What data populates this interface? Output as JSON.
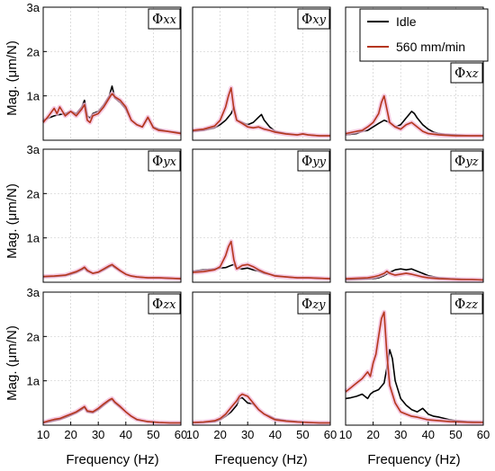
{
  "figure": {
    "xlabel": "Frequency (Hz)",
    "ylabel": "Mag. (μm/N)",
    "legend": {
      "placement": "top-right panel xy",
      "entries": [
        "Idle",
        "560 mm/min"
      ]
    },
    "colors": {
      "idle": "#000000",
      "feed": "#b5361d",
      "band": "#f2b8d8",
      "grid": "#cfcfcf"
    }
  },
  "chart_data": [
    {
      "type": "line",
      "panel": "xx",
      "label_main": "Φ",
      "label_sub": "xx",
      "xlim": [
        10,
        60
      ],
      "ylim": [
        0,
        3
      ],
      "xticks": [
        "10",
        "20",
        "30",
        "40",
        "50",
        "60"
      ],
      "yticks": [
        "1a",
        "2a",
        "3a"
      ],
      "series": [
        {
          "name": "Idle",
          "x": [
            10,
            12,
            14,
            16,
            18,
            20,
            22,
            24,
            25,
            26,
            27,
            28,
            30,
            32,
            34,
            35,
            36,
            38,
            40,
            42,
            44,
            46,
            48,
            50,
            52,
            55,
            58,
            60
          ],
          "y": [
            0.45,
            0.5,
            0.55,
            0.58,
            0.6,
            0.65,
            0.6,
            0.75,
            0.9,
            0.55,
            0.5,
            0.6,
            0.65,
            0.8,
            1.0,
            1.22,
            0.95,
            0.85,
            0.7,
            0.45,
            0.35,
            0.3,
            0.5,
            0.3,
            0.25,
            0.2,
            0.18,
            0.16
          ]
        },
        {
          "name": "560 mm/min",
          "x": [
            10,
            12,
            14,
            15,
            16,
            18,
            20,
            22,
            24,
            25,
            26,
            27,
            28,
            30,
            32,
            34,
            35,
            36,
            38,
            40,
            42,
            44,
            46,
            48,
            50,
            52,
            55,
            58,
            60
          ],
          "y": [
            0.4,
            0.55,
            0.72,
            0.6,
            0.75,
            0.55,
            0.65,
            0.55,
            0.7,
            0.8,
            0.45,
            0.4,
            0.55,
            0.6,
            0.75,
            0.95,
            1.05,
            0.98,
            0.9,
            0.75,
            0.45,
            0.35,
            0.3,
            0.52,
            0.28,
            0.22,
            0.2,
            0.17,
            0.15
          ]
        }
      ]
    },
    {
      "type": "line",
      "panel": "xy",
      "label_main": "Φ",
      "label_sub": "xy",
      "xlim": [
        10,
        60
      ],
      "ylim": [
        0,
        3
      ],
      "xticks": [
        "10",
        "20",
        "30",
        "40",
        "50",
        "60"
      ],
      "yticks": [
        "1a",
        "2a",
        "3a"
      ],
      "series": [
        {
          "name": "Idle",
          "x": [
            10,
            14,
            18,
            20,
            22,
            24,
            25,
            26,
            28,
            30,
            32,
            34,
            35,
            36,
            38,
            40,
            44,
            48,
            50,
            52,
            56,
            60
          ],
          "y": [
            0.2,
            0.22,
            0.28,
            0.35,
            0.45,
            0.6,
            0.75,
            0.45,
            0.4,
            0.35,
            0.4,
            0.52,
            0.58,
            0.45,
            0.3,
            0.2,
            0.15,
            0.12,
            0.15,
            0.12,
            0.1,
            0.1
          ]
        },
        {
          "name": "560 mm/min",
          "x": [
            10,
            14,
            18,
            20,
            22,
            23,
            24,
            25,
            26,
            28,
            30,
            32,
            34,
            36,
            38,
            40,
            44,
            48,
            50,
            52,
            56,
            60
          ],
          "y": [
            0.22,
            0.25,
            0.32,
            0.45,
            0.75,
            1.0,
            1.18,
            0.7,
            0.45,
            0.38,
            0.3,
            0.28,
            0.3,
            0.25,
            0.22,
            0.18,
            0.14,
            0.12,
            0.14,
            0.12,
            0.1,
            0.1
          ]
        }
      ]
    },
    {
      "type": "line",
      "panel": "xz",
      "label_main": "Φ",
      "label_sub": "xz",
      "xlim": [
        10,
        60
      ],
      "ylim": [
        0,
        3
      ],
      "xticks": [
        "10",
        "20",
        "30",
        "40",
        "50",
        "60"
      ],
      "yticks": [
        "1a",
        "2a",
        "3a"
      ],
      "series": [
        {
          "name": "Idle",
          "x": [
            10,
            14,
            16,
            18,
            20,
            22,
            24,
            26,
            28,
            30,
            32,
            34,
            35,
            36,
            38,
            40,
            42,
            44,
            46,
            50,
            55,
            60
          ],
          "y": [
            0.12,
            0.15,
            0.2,
            0.22,
            0.3,
            0.38,
            0.45,
            0.4,
            0.3,
            0.35,
            0.5,
            0.65,
            0.6,
            0.5,
            0.35,
            0.25,
            0.18,
            0.15,
            0.13,
            0.12,
            0.1,
            0.1
          ]
        },
        {
          "name": "560 mm/min",
          "x": [
            10,
            14,
            16,
            18,
            20,
            22,
            23,
            24,
            25,
            26,
            28,
            30,
            32,
            34,
            36,
            38,
            40,
            44,
            50,
            55,
            60
          ],
          "y": [
            0.15,
            0.2,
            0.22,
            0.3,
            0.4,
            0.6,
            0.85,
            1.0,
            0.7,
            0.4,
            0.3,
            0.25,
            0.35,
            0.4,
            0.3,
            0.2,
            0.15,
            0.12,
            0.1,
            0.1,
            0.1
          ]
        }
      ]
    },
    {
      "type": "line",
      "panel": "yx",
      "label_main": "Φ",
      "label_sub": "yx",
      "xlim": [
        10,
        60
      ],
      "ylim": [
        0,
        3
      ],
      "xticks": [
        "10",
        "20",
        "30",
        "40",
        "50",
        "60"
      ],
      "yticks": [
        "1a",
        "2a",
        "3a"
      ],
      "series": [
        {
          "name": "Idle",
          "x": [
            10,
            14,
            18,
            20,
            22,
            24,
            25,
            26,
            28,
            30,
            32,
            34,
            35,
            36,
            38,
            40,
            42,
            44,
            48,
            52,
            56,
            60
          ],
          "y": [
            0.12,
            0.13,
            0.15,
            0.18,
            0.22,
            0.28,
            0.32,
            0.25,
            0.2,
            0.22,
            0.28,
            0.35,
            0.38,
            0.33,
            0.25,
            0.18,
            0.14,
            0.12,
            0.1,
            0.1,
            0.09,
            0.08
          ]
        },
        {
          "name": "560 mm/min",
          "x": [
            10,
            14,
            18,
            20,
            22,
            24,
            25,
            26,
            28,
            30,
            32,
            34,
            35,
            36,
            38,
            40,
            42,
            44,
            48,
            52,
            56,
            60
          ],
          "y": [
            0.13,
            0.14,
            0.16,
            0.2,
            0.24,
            0.3,
            0.34,
            0.27,
            0.2,
            0.23,
            0.3,
            0.37,
            0.4,
            0.35,
            0.26,
            0.18,
            0.14,
            0.12,
            0.1,
            0.1,
            0.09,
            0.08
          ]
        }
      ]
    },
    {
      "type": "line",
      "panel": "yy",
      "label_main": "Φ",
      "label_sub": "yy",
      "xlim": [
        10,
        60
      ],
      "ylim": [
        0,
        3
      ],
      "xticks": [
        "10",
        "20",
        "30",
        "40",
        "50",
        "60"
      ],
      "yticks": [
        "1a",
        "2a",
        "3a"
      ],
      "series": [
        {
          "name": "Idle",
          "x": [
            10,
            14,
            18,
            20,
            22,
            24,
            25,
            26,
            28,
            30,
            32,
            34,
            36,
            38,
            40,
            44,
            48,
            52,
            56,
            60
          ],
          "y": [
            0.25,
            0.28,
            0.3,
            0.32,
            0.33,
            0.38,
            0.4,
            0.32,
            0.3,
            0.32,
            0.28,
            0.25,
            0.2,
            0.18,
            0.15,
            0.12,
            0.1,
            0.1,
            0.09,
            0.08
          ]
        },
        {
          "name": "560 mm/min",
          "x": [
            10,
            14,
            18,
            20,
            22,
            23,
            24,
            25,
            26,
            28,
            30,
            32,
            34,
            36,
            38,
            40,
            44,
            48,
            52,
            56,
            60
          ],
          "y": [
            0.22,
            0.24,
            0.28,
            0.35,
            0.6,
            0.8,
            0.92,
            0.5,
            0.3,
            0.38,
            0.4,
            0.35,
            0.28,
            0.22,
            0.18,
            0.14,
            0.12,
            0.1,
            0.1,
            0.09,
            0.08
          ]
        }
      ]
    },
    {
      "type": "line",
      "panel": "yz",
      "label_main": "Φ",
      "label_sub": "yz",
      "xlim": [
        10,
        60
      ],
      "ylim": [
        0,
        3
      ],
      "xticks": [
        "10",
        "20",
        "30",
        "40",
        "50",
        "60"
      ],
      "yticks": [
        "1a",
        "2a",
        "3a"
      ],
      "series": [
        {
          "name": "Idle",
          "x": [
            10,
            14,
            18,
            20,
            22,
            24,
            26,
            28,
            30,
            32,
            34,
            36,
            38,
            40,
            44,
            48,
            52,
            56,
            60
          ],
          "y": [
            0.05,
            0.06,
            0.07,
            0.08,
            0.1,
            0.15,
            0.22,
            0.28,
            0.3,
            0.28,
            0.3,
            0.25,
            0.2,
            0.15,
            0.1,
            0.08,
            0.07,
            0.06,
            0.05
          ]
        },
        {
          "name": "560 mm/min",
          "x": [
            10,
            14,
            18,
            20,
            22,
            24,
            25,
            26,
            28,
            30,
            32,
            34,
            36,
            38,
            40,
            44,
            48,
            52,
            56,
            60
          ],
          "y": [
            0.08,
            0.09,
            0.1,
            0.12,
            0.15,
            0.2,
            0.25,
            0.2,
            0.16,
            0.18,
            0.2,
            0.18,
            0.15,
            0.12,
            0.1,
            0.08,
            0.07,
            0.06,
            0.06,
            0.05
          ]
        }
      ]
    },
    {
      "type": "line",
      "panel": "zx",
      "label_main": "Φ",
      "label_sub": "zx",
      "xlim": [
        10,
        60
      ],
      "ylim": [
        0,
        3
      ],
      "xticks": [
        "10",
        "20",
        "30",
        "40",
        "50",
        "60"
      ],
      "yticks": [
        "1a",
        "2a",
        "3a"
      ],
      "series": [
        {
          "name": "Idle",
          "x": [
            10,
            12,
            14,
            16,
            18,
            20,
            22,
            24,
            25,
            26,
            28,
            30,
            32,
            34,
            35,
            36,
            38,
            40,
            42,
            44,
            48,
            52,
            56,
            60
          ],
          "y": [
            0.05,
            0.07,
            0.1,
            0.13,
            0.17,
            0.22,
            0.28,
            0.35,
            0.4,
            0.3,
            0.28,
            0.35,
            0.45,
            0.55,
            0.58,
            0.5,
            0.4,
            0.3,
            0.2,
            0.12,
            0.08,
            0.06,
            0.05,
            0.05
          ]
        },
        {
          "name": "560 mm/min",
          "x": [
            10,
            12,
            14,
            16,
            18,
            20,
            22,
            24,
            25,
            26,
            28,
            30,
            32,
            34,
            35,
            36,
            38,
            40,
            42,
            44,
            48,
            52,
            56,
            60
          ],
          "y": [
            0.06,
            0.1,
            0.13,
            0.15,
            0.2,
            0.25,
            0.3,
            0.38,
            0.42,
            0.32,
            0.3,
            0.38,
            0.48,
            0.57,
            0.6,
            0.52,
            0.42,
            0.3,
            0.2,
            0.13,
            0.08,
            0.06,
            0.05,
            0.05
          ]
        }
      ]
    },
    {
      "type": "line",
      "panel": "zy",
      "label_main": "Φ",
      "label_sub": "zy",
      "xlim": [
        10,
        60
      ],
      "ylim": [
        0,
        3
      ],
      "xticks": [
        "10",
        "20",
        "30",
        "40",
        "50",
        "60"
      ],
      "yticks": [
        "1a",
        "2a",
        "3a"
      ],
      "series": [
        {
          "name": "Idle",
          "x": [
            10,
            14,
            18,
            20,
            22,
            24,
            26,
            27,
            28,
            30,
            32,
            34,
            36,
            38,
            40,
            44,
            48,
            52,
            56,
            60
          ],
          "y": [
            0.05,
            0.06,
            0.08,
            0.12,
            0.2,
            0.3,
            0.45,
            0.6,
            0.62,
            0.5,
            0.48,
            0.35,
            0.25,
            0.2,
            0.14,
            0.1,
            0.08,
            0.06,
            0.05,
            0.05
          ]
        },
        {
          "name": "560 mm/min",
          "x": [
            10,
            14,
            18,
            20,
            22,
            24,
            26,
            27,
            28,
            30,
            32,
            34,
            36,
            38,
            40,
            44,
            48,
            52,
            56,
            60
          ],
          "y": [
            0.06,
            0.07,
            0.1,
            0.15,
            0.25,
            0.4,
            0.55,
            0.65,
            0.7,
            0.65,
            0.5,
            0.35,
            0.25,
            0.18,
            0.12,
            0.09,
            0.07,
            0.06,
            0.05,
            0.05
          ]
        }
      ]
    },
    {
      "type": "line",
      "panel": "zz",
      "label_main": "Φ",
      "label_sub": "zz",
      "xlim": [
        10,
        60
      ],
      "ylim": [
        0,
        3
      ],
      "xticks": [
        "10",
        "20",
        "30",
        "40",
        "50",
        "60"
      ],
      "yticks": [
        "1a",
        "2a",
        "3a"
      ],
      "series": [
        {
          "name": "Idle",
          "x": [
            10,
            12,
            14,
            16,
            18,
            19,
            20,
            22,
            24,
            25,
            26,
            27,
            28,
            30,
            32,
            34,
            36,
            38,
            40,
            42,
            44,
            46,
            48,
            50,
            54,
            60
          ],
          "y": [
            0.6,
            0.62,
            0.65,
            0.7,
            0.6,
            0.7,
            0.75,
            0.8,
            0.95,
            1.3,
            1.7,
            1.5,
            1.0,
            0.6,
            0.45,
            0.35,
            0.3,
            0.38,
            0.25,
            0.2,
            0.18,
            0.15,
            0.12,
            0.1,
            0.08,
            0.07
          ]
        },
        {
          "name": "560 mm/min",
          "x": [
            10,
            12,
            14,
            16,
            18,
            19,
            20,
            21,
            22,
            23,
            24,
            25,
            26,
            28,
            30,
            32,
            34,
            36,
            38,
            40,
            44,
            48,
            52,
            56,
            60
          ],
          "y": [
            0.75,
            0.85,
            0.95,
            1.05,
            1.2,
            1.1,
            1.4,
            1.6,
            2.0,
            2.4,
            2.55,
            1.6,
            0.9,
            0.5,
            0.3,
            0.25,
            0.2,
            0.18,
            0.15,
            0.12,
            0.1,
            0.08,
            0.07,
            0.06,
            0.06
          ]
        }
      ]
    }
  ]
}
